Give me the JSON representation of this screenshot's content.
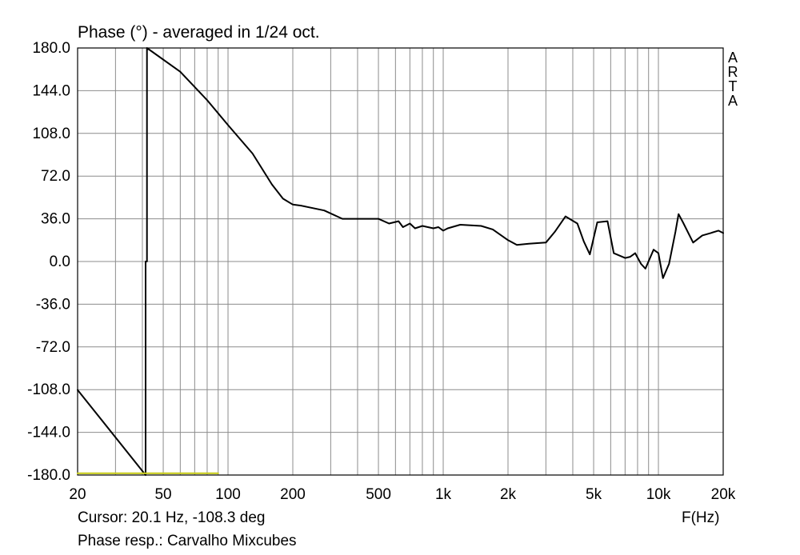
{
  "chart_data": {
    "type": "line",
    "title": "Phase (°) - averaged in 1/24 oct.",
    "xlabel": "F(Hz)",
    "ylabel": "",
    "x_scale": "log",
    "xlim": [
      20,
      20000
    ],
    "ylim": [
      -180,
      180
    ],
    "grid": true,
    "x_ticks": [
      {
        "value": 20,
        "label": "20"
      },
      {
        "value": 50,
        "label": "50"
      },
      {
        "value": 100,
        "label": "100"
      },
      {
        "value": 200,
        "label": "200"
      },
      {
        "value": 500,
        "label": "500"
      },
      {
        "value": 1000,
        "label": "1k"
      },
      {
        "value": 2000,
        "label": "2k"
      },
      {
        "value": 5000,
        "label": "5k"
      },
      {
        "value": 10000,
        "label": "10k"
      },
      {
        "value": 20000,
        "label": "20k"
      }
    ],
    "y_ticks": [
      "180.0",
      "144.0",
      "108.0",
      "72.0",
      "36.0",
      "0.0",
      "-36.0",
      "-72.0",
      "-108.0",
      "-144.0",
      "-180.0"
    ],
    "series": [
      {
        "color": "#000000",
        "x": [
          20,
          41.4,
          41.4,
          42,
          42,
          60,
          80,
          100,
          130,
          160,
          180,
          200,
          220,
          280,
          340,
          420,
          500,
          560,
          620,
          650,
          700,
          740,
          800,
          900,
          950,
          1000,
          1050,
          1200,
          1500,
          1700,
          2000,
          2200,
          2500,
          3000,
          3300,
          3700,
          4200,
          4500,
          4800,
          5200,
          5800,
          6200,
          7000,
          7400,
          7800,
          8300,
          8700,
          9500,
          10000,
          10500,
          11200,
          12000,
          12400,
          13000,
          14500,
          16000,
          17500,
          19000,
          20000
        ],
        "y": [
          -108.3,
          -180,
          0,
          0,
          180,
          160,
          136,
          115,
          91,
          65,
          53,
          48,
          47,
          43,
          36,
          36,
          36,
          32,
          34,
          29,
          32,
          28,
          30,
          28,
          29,
          26,
          28,
          31,
          30,
          27,
          18,
          14,
          15,
          16,
          25,
          38,
          32,
          17,
          6,
          33,
          34,
          7,
          3,
          4,
          7,
          -2,
          -6,
          10,
          7,
          -14,
          -2,
          25,
          40,
          33,
          16,
          22,
          24,
          26,
          24
        ]
      },
      {
        "color": "#c8cc1e",
        "x": [
          20,
          90
        ],
        "y": [
          -178.5,
          -178.5
        ]
      }
    ]
  },
  "labels": {
    "title": "Phase (°) - averaged in 1/24 oct.",
    "cursor": "Cursor: 20.1 Hz, -108.3 deg",
    "caption": "Phase resp.: Carvalho Mixcubes",
    "x_unit": "F(Hz)",
    "brand_letters": [
      "A",
      "R",
      "T",
      "A"
    ]
  },
  "colors": {
    "grid": "#8c8c8c",
    "frame": "#000000",
    "trace": "#000000",
    "marker": "#c8cc1e"
  }
}
